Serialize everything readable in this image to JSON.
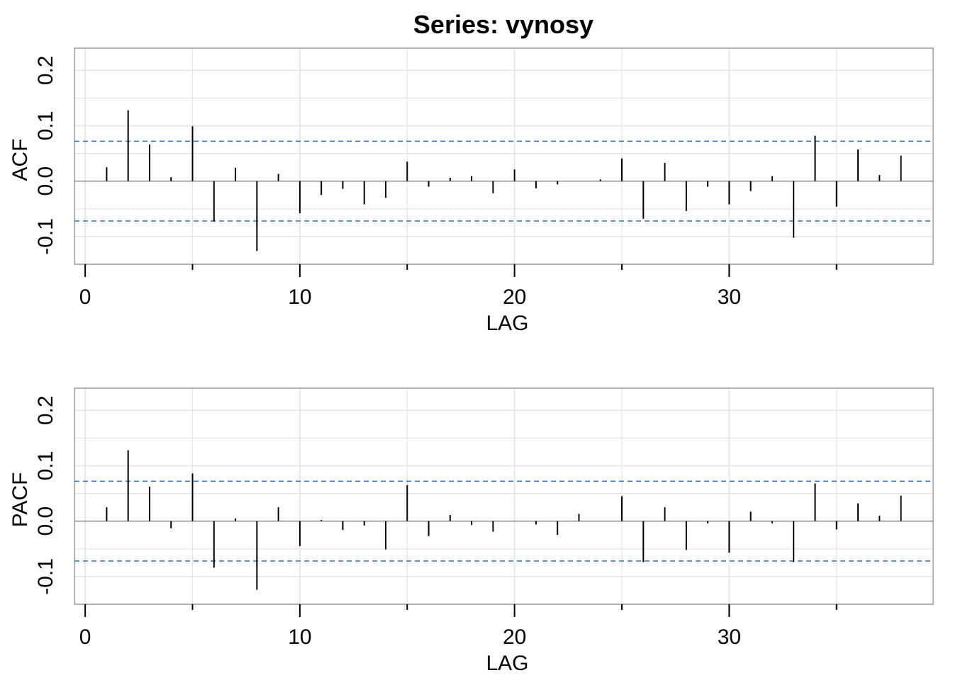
{
  "title": "Series:  vynosy",
  "colors": {
    "bar": "#000000",
    "band": "#1f77c4",
    "grid": "#e3e3e3",
    "frame": "#9a9a9a",
    "zero": "#8c8c8c"
  },
  "chart_data": [
    {
      "type": "bar",
      "name": "acf",
      "xlabel": "LAG",
      "ylabel": "ACF",
      "xlim": [
        -0.5,
        39.5
      ],
      "ylim": [
        -0.15,
        0.24
      ],
      "xticks": [
        0,
        10,
        20,
        30
      ],
      "xtick_labels": [
        "0",
        "10",
        "20",
        "30"
      ],
      "yticks": [
        -0.1,
        0.0,
        0.1,
        0.2
      ],
      "ytick_labels": [
        "-0.1",
        "0.0",
        "0.1",
        "0.2"
      ],
      "conf_band": 0.072,
      "grid": true,
      "lags": [
        1,
        2,
        3,
        4,
        5,
        6,
        7,
        8,
        9,
        10,
        11,
        12,
        13,
        14,
        15,
        16,
        17,
        18,
        19,
        20,
        21,
        22,
        23,
        24,
        25,
        26,
        27,
        28,
        29,
        30,
        31,
        32,
        33,
        34,
        35,
        36,
        37,
        38
      ],
      "values": [
        0.025,
        0.128,
        0.066,
        0.007,
        0.099,
        -0.073,
        0.024,
        -0.126,
        0.013,
        -0.058,
        -0.025,
        -0.014,
        -0.042,
        -0.03,
        0.035,
        -0.01,
        0.006,
        0.009,
        -0.022,
        0.021,
        -0.013,
        -0.006,
        0.0,
        0.003,
        0.041,
        -0.068,
        0.033,
        -0.054,
        -0.01,
        -0.042,
        -0.018,
        0.009,
        -0.102,
        0.082,
        -0.046,
        0.057,
        0.011,
        0.046
      ]
    },
    {
      "type": "bar",
      "name": "pacf",
      "xlabel": "LAG",
      "ylabel": "PACF",
      "xlim": [
        -0.5,
        39.5
      ],
      "ylim": [
        -0.15,
        0.24
      ],
      "xticks": [
        0,
        10,
        20,
        30
      ],
      "xtick_labels": [
        "0",
        "10",
        "20",
        "30"
      ],
      "yticks": [
        -0.1,
        0.0,
        0.1,
        0.2
      ],
      "ytick_labels": [
        "-0.1",
        "0.0",
        "0.1",
        "0.2"
      ],
      "conf_band": 0.072,
      "grid": true,
      "lags": [
        1,
        2,
        3,
        4,
        5,
        6,
        7,
        8,
        9,
        10,
        11,
        12,
        13,
        14,
        15,
        16,
        17,
        18,
        19,
        20,
        21,
        22,
        23,
        24,
        25,
        26,
        27,
        28,
        29,
        30,
        31,
        32,
        33,
        34,
        35,
        36,
        37,
        38
      ],
      "values": [
        0.025,
        0.128,
        0.062,
        -0.013,
        0.086,
        -0.084,
        0.005,
        -0.124,
        0.025,
        -0.045,
        0.002,
        -0.016,
        -0.008,
        -0.051,
        0.065,
        -0.027,
        0.011,
        -0.007,
        -0.019,
        0.0,
        -0.006,
        -0.025,
        0.013,
        0.0,
        0.045,
        -0.074,
        0.025,
        -0.052,
        -0.004,
        -0.057,
        0.017,
        -0.004,
        -0.074,
        0.068,
        -0.015,
        0.032,
        0.01,
        0.046
      ]
    }
  ]
}
